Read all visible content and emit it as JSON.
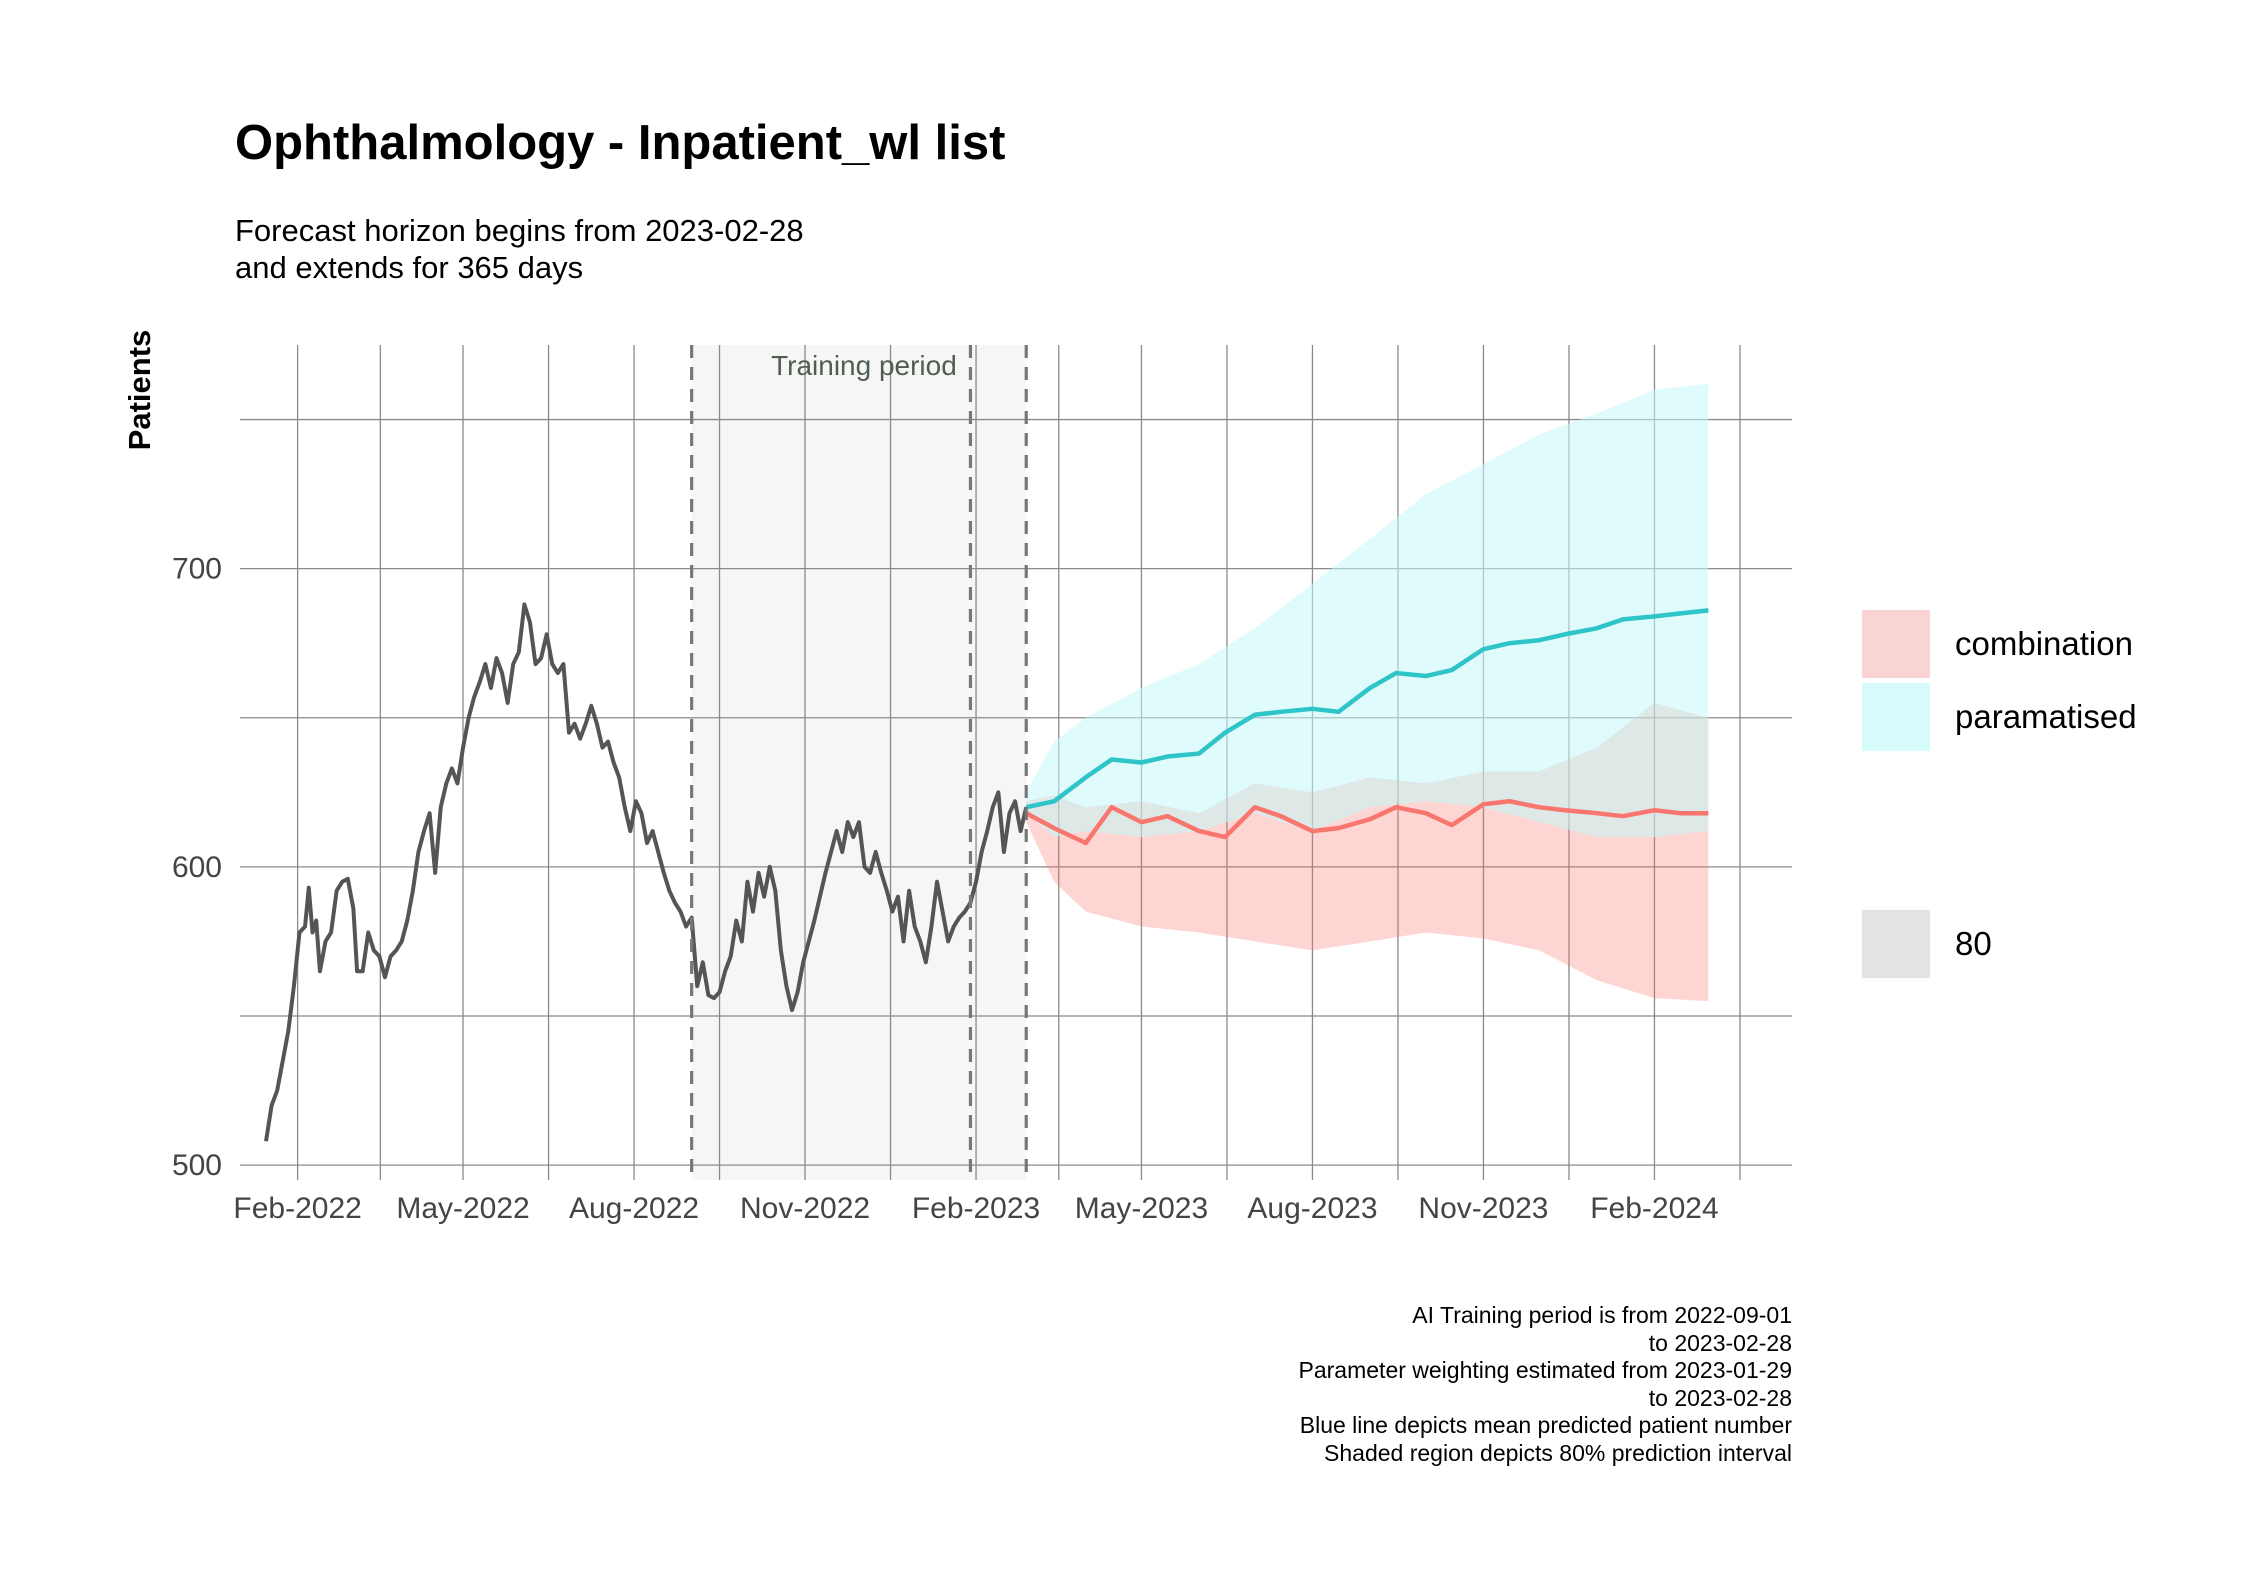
{
  "title": "Ophthalmology - Inpatient_wl list",
  "subtitle": {
    "line1": "Forecast horizon begins from 2023-02-28",
    "line2": "and extends for 365 days"
  },
  "caption": [
    "AI Training period is from 2022-09-01",
    "to 2023-02-28",
    "Parameter weighting estimated from 2023-01-29",
    "to 2023-02-28",
    "Blue line depicts mean predicted patient number",
    "Shaded region depicts 80% prediction interval"
  ],
  "chart_data": {
    "type": "line",
    "title": "Ophthalmology - Inpatient_wl list",
    "xlabel": "",
    "ylabel": "Patients",
    "ylim": [
      495,
      775
    ],
    "y_ticks": [
      500,
      600,
      700
    ],
    "x_ticks": [
      {
        "date": "2022-02-01",
        "label": "Feb-2022"
      },
      {
        "date": "2022-05-01",
        "label": "May-2022"
      },
      {
        "date": "2022-08-01",
        "label": "Aug-2022"
      },
      {
        "date": "2022-11-01",
        "label": "Nov-2022"
      },
      {
        "date": "2023-02-01",
        "label": "Feb-2023"
      },
      {
        "date": "2023-05-01",
        "label": "May-2023"
      },
      {
        "date": "2023-08-01",
        "label": "Aug-2023"
      },
      {
        "date": "2023-11-01",
        "label": "Nov-2023"
      },
      {
        "date": "2024-02-01",
        "label": "Feb-2024"
      }
    ],
    "xlim": [
      "2022-01-01",
      "2024-04-15"
    ],
    "grid": true,
    "training_period": {
      "label": "Training period",
      "start": "2022-09-01",
      "end": "2023-02-28",
      "weighting_start": "2023-01-29"
    },
    "observed": {
      "color": "#555555",
      "points": [
        [
          "2022-01-15",
          508
        ],
        [
          "2022-01-18",
          520
        ],
        [
          "2022-01-21",
          525
        ],
        [
          "2022-01-24",
          535
        ],
        [
          "2022-01-27",
          545
        ],
        [
          "2022-01-30",
          560
        ],
        [
          "2022-02-02",
          578
        ],
        [
          "2022-02-05",
          580
        ],
        [
          "2022-02-07",
          593
        ],
        [
          "2022-02-09",
          578
        ],
        [
          "2022-02-11",
          582
        ],
        [
          "2022-02-13",
          565
        ],
        [
          "2022-02-16",
          575
        ],
        [
          "2022-02-19",
          578
        ],
        [
          "2022-02-22",
          592
        ],
        [
          "2022-02-25",
          595
        ],
        [
          "2022-02-28",
          596
        ],
        [
          "2022-03-03",
          586
        ],
        [
          "2022-03-05",
          565
        ],
        [
          "2022-03-08",
          565
        ],
        [
          "2022-03-11",
          578
        ],
        [
          "2022-03-14",
          572
        ],
        [
          "2022-03-17",
          570
        ],
        [
          "2022-03-20",
          563
        ],
        [
          "2022-03-23",
          570
        ],
        [
          "2022-03-26",
          572
        ],
        [
          "2022-03-29",
          575
        ],
        [
          "2022-04-01",
          582
        ],
        [
          "2022-04-04",
          592
        ],
        [
          "2022-04-07",
          605
        ],
        [
          "2022-04-10",
          612
        ],
        [
          "2022-04-13",
          618
        ],
        [
          "2022-04-16",
          598
        ],
        [
          "2022-04-19",
          620
        ],
        [
          "2022-04-22",
          628
        ],
        [
          "2022-04-25",
          633
        ],
        [
          "2022-04-28",
          628
        ],
        [
          "2022-05-01",
          640
        ],
        [
          "2022-05-04",
          650
        ],
        [
          "2022-05-07",
          657
        ],
        [
          "2022-05-10",
          662
        ],
        [
          "2022-05-13",
          668
        ],
        [
          "2022-05-16",
          660
        ],
        [
          "2022-05-19",
          670
        ],
        [
          "2022-05-22",
          665
        ],
        [
          "2022-05-25",
          655
        ],
        [
          "2022-05-28",
          668
        ],
        [
          "2022-05-31",
          672
        ],
        [
          "2022-06-03",
          688
        ],
        [
          "2022-06-06",
          682
        ],
        [
          "2022-06-09",
          668
        ],
        [
          "2022-06-12",
          670
        ],
        [
          "2022-06-15",
          678
        ],
        [
          "2022-06-18",
          668
        ],
        [
          "2022-06-21",
          665
        ],
        [
          "2022-06-24",
          668
        ],
        [
          "2022-06-27",
          645
        ],
        [
          "2022-06-30",
          648
        ],
        [
          "2022-07-03",
          643
        ],
        [
          "2022-07-06",
          648
        ],
        [
          "2022-07-09",
          654
        ],
        [
          "2022-07-12",
          648
        ],
        [
          "2022-07-15",
          640
        ],
        [
          "2022-07-18",
          642
        ],
        [
          "2022-07-21",
          635
        ],
        [
          "2022-07-24",
          630
        ],
        [
          "2022-07-27",
          620
        ],
        [
          "2022-07-30",
          612
        ],
        [
          "2022-08-02",
          622
        ],
        [
          "2022-08-05",
          618
        ],
        [
          "2022-08-08",
          608
        ],
        [
          "2022-08-11",
          612
        ],
        [
          "2022-08-14",
          605
        ],
        [
          "2022-08-17",
          598
        ],
        [
          "2022-08-20",
          592
        ],
        [
          "2022-08-23",
          588
        ],
        [
          "2022-08-26",
          585
        ],
        [
          "2022-08-29",
          580
        ],
        [
          "2022-09-01",
          583
        ],
        [
          "2022-09-04",
          560
        ],
        [
          "2022-09-07",
          568
        ],
        [
          "2022-09-10",
          557
        ],
        [
          "2022-09-13",
          556
        ],
        [
          "2022-09-16",
          558
        ],
        [
          "2022-09-19",
          565
        ],
        [
          "2022-09-22",
          570
        ],
        [
          "2022-09-25",
          582
        ],
        [
          "2022-09-28",
          575
        ],
        [
          "2022-10-01",
          595
        ],
        [
          "2022-10-04",
          585
        ],
        [
          "2022-10-07",
          598
        ],
        [
          "2022-10-10",
          590
        ],
        [
          "2022-10-13",
          600
        ],
        [
          "2022-10-16",
          592
        ],
        [
          "2022-10-19",
          572
        ],
        [
          "2022-10-22",
          560
        ],
        [
          "2022-10-25",
          552
        ],
        [
          "2022-10-28",
          558
        ],
        [
          "2022-10-31",
          568
        ],
        [
          "2022-11-03",
          575
        ],
        [
          "2022-11-06",
          582
        ],
        [
          "2022-11-09",
          590
        ],
        [
          "2022-11-12",
          598
        ],
        [
          "2022-11-15",
          605
        ],
        [
          "2022-11-18",
          612
        ],
        [
          "2022-11-21",
          605
        ],
        [
          "2022-11-24",
          615
        ],
        [
          "2022-11-27",
          610
        ],
        [
          "2022-11-30",
          615
        ],
        [
          "2022-12-03",
          600
        ],
        [
          "2022-12-06",
          598
        ],
        [
          "2022-12-09",
          605
        ],
        [
          "2022-12-12",
          598
        ],
        [
          "2022-12-15",
          592
        ],
        [
          "2022-12-18",
          585
        ],
        [
          "2022-12-21",
          590
        ],
        [
          "2022-12-24",
          575
        ],
        [
          "2022-12-27",
          592
        ],
        [
          "2022-12-30",
          580
        ],
        [
          "2023-01-02",
          575
        ],
        [
          "2023-01-05",
          568
        ],
        [
          "2023-01-08",
          580
        ],
        [
          "2023-01-11",
          595
        ],
        [
          "2023-01-14",
          585
        ],
        [
          "2023-01-17",
          575
        ],
        [
          "2023-01-20",
          580
        ],
        [
          "2023-01-23",
          583
        ],
        [
          "2023-01-26",
          585
        ],
        [
          "2023-01-29",
          588
        ],
        [
          "2023-02-01",
          595
        ],
        [
          "2023-02-04",
          605
        ],
        [
          "2023-02-07",
          612
        ],
        [
          "2023-02-10",
          620
        ],
        [
          "2023-02-13",
          625
        ],
        [
          "2023-02-16",
          605
        ],
        [
          "2023-02-19",
          618
        ],
        [
          "2023-02-22",
          622
        ],
        [
          "2023-02-25",
          612
        ],
        [
          "2023-02-28",
          620
        ]
      ]
    },
    "series": [
      {
        "name": "combination",
        "color": "#F8766D",
        "fill": "#F8766D",
        "mean": [
          [
            "2023-02-28",
            618
          ],
          [
            "2023-03-15",
            613
          ],
          [
            "2023-04-01",
            608
          ],
          [
            "2023-04-15",
            620
          ],
          [
            "2023-05-01",
            615
          ],
          [
            "2023-05-15",
            617
          ],
          [
            "2023-06-01",
            612
          ],
          [
            "2023-06-15",
            610
          ],
          [
            "2023-07-01",
            620
          ],
          [
            "2023-07-15",
            617
          ],
          [
            "2023-08-01",
            612
          ],
          [
            "2023-08-15",
            613
          ],
          [
            "2023-09-01",
            616
          ],
          [
            "2023-09-15",
            620
          ],
          [
            "2023-10-01",
            618
          ],
          [
            "2023-10-15",
            614
          ],
          [
            "2023-11-01",
            621
          ],
          [
            "2023-11-15",
            622
          ],
          [
            "2023-12-01",
            620
          ],
          [
            "2023-12-15",
            619
          ],
          [
            "2024-01-01",
            618
          ],
          [
            "2024-01-15",
            617
          ],
          [
            "2024-02-01",
            619
          ],
          [
            "2024-02-15",
            618
          ],
          [
            "2024-03-01",
            618
          ]
        ],
        "lower": [
          [
            "2023-02-28",
            615
          ],
          [
            "2023-03-15",
            595
          ],
          [
            "2023-04-01",
            585
          ],
          [
            "2023-05-01",
            580
          ],
          [
            "2023-06-01",
            578
          ],
          [
            "2023-07-01",
            575
          ],
          [
            "2023-08-01",
            572
          ],
          [
            "2023-09-01",
            575
          ],
          [
            "2023-10-01",
            578
          ],
          [
            "2023-11-01",
            576
          ],
          [
            "2023-12-01",
            572
          ],
          [
            "2024-01-01",
            562
          ],
          [
            "2024-02-01",
            556
          ],
          [
            "2024-03-01",
            555
          ]
        ],
        "upper": [
          [
            "2023-02-28",
            622
          ],
          [
            "2023-03-15",
            624
          ],
          [
            "2023-04-01",
            620
          ],
          [
            "2023-05-01",
            622
          ],
          [
            "2023-06-01",
            618
          ],
          [
            "2023-07-01",
            628
          ],
          [
            "2023-08-01",
            625
          ],
          [
            "2023-09-01",
            630
          ],
          [
            "2023-10-01",
            628
          ],
          [
            "2023-11-01",
            632
          ],
          [
            "2023-12-01",
            632
          ],
          [
            "2024-01-01",
            640
          ],
          [
            "2024-02-01",
            655
          ],
          [
            "2024-03-01",
            650
          ]
        ]
      },
      {
        "name": "paramatised",
        "color": "#2EC4C8",
        "fill": "#C4F8F8",
        "mean": [
          [
            "2023-02-28",
            620
          ],
          [
            "2023-03-15",
            622
          ],
          [
            "2023-04-01",
            630
          ],
          [
            "2023-04-15",
            636
          ],
          [
            "2023-05-01",
            635
          ],
          [
            "2023-05-15",
            637
          ],
          [
            "2023-06-01",
            638
          ],
          [
            "2023-06-15",
            645
          ],
          [
            "2023-07-01",
            651
          ],
          [
            "2023-07-15",
            652
          ],
          [
            "2023-08-01",
            653
          ],
          [
            "2023-08-15",
            652
          ],
          [
            "2023-09-01",
            660
          ],
          [
            "2023-09-15",
            665
          ],
          [
            "2023-10-01",
            664
          ],
          [
            "2023-10-15",
            666
          ],
          [
            "2023-11-01",
            673
          ],
          [
            "2023-11-15",
            675
          ],
          [
            "2023-12-01",
            676
          ],
          [
            "2023-12-15",
            678
          ],
          [
            "2024-01-01",
            680
          ],
          [
            "2024-01-15",
            683
          ],
          [
            "2024-02-01",
            684
          ],
          [
            "2024-02-15",
            685
          ],
          [
            "2024-03-01",
            686
          ]
        ],
        "lower": [
          [
            "2023-02-28",
            618
          ],
          [
            "2023-03-15",
            610
          ],
          [
            "2023-04-01",
            612
          ],
          [
            "2023-05-01",
            610
          ],
          [
            "2023-06-01",
            612
          ],
          [
            "2023-07-01",
            618
          ],
          [
            "2023-08-01",
            612
          ],
          [
            "2023-09-01",
            620
          ],
          [
            "2023-10-01",
            622
          ],
          [
            "2023-11-01",
            620
          ],
          [
            "2023-12-01",
            615
          ],
          [
            "2024-01-01",
            610
          ],
          [
            "2024-02-01",
            610
          ],
          [
            "2024-03-01",
            612
          ]
        ],
        "upper": [
          [
            "2023-02-28",
            625
          ],
          [
            "2023-03-15",
            642
          ],
          [
            "2023-04-01",
            650
          ],
          [
            "2023-05-01",
            660
          ],
          [
            "2023-06-01",
            668
          ],
          [
            "2023-07-01",
            680
          ],
          [
            "2023-08-01",
            695
          ],
          [
            "2023-09-01",
            710
          ],
          [
            "2023-10-01",
            725
          ],
          [
            "2023-11-01",
            735
          ],
          [
            "2023-12-01",
            745
          ],
          [
            "2024-01-01",
            752
          ],
          [
            "2024-02-01",
            760
          ],
          [
            "2024-03-01",
            762
          ]
        ]
      }
    ],
    "legend": {
      "placement": "right",
      "items": [
        {
          "label": "combination",
          "fill": "#FAD4D2"
        },
        {
          "label": "paramatised",
          "fill": "#D5FBFB"
        },
        {
          "label": "80",
          "fill": "#E3E3E3"
        }
      ]
    }
  }
}
